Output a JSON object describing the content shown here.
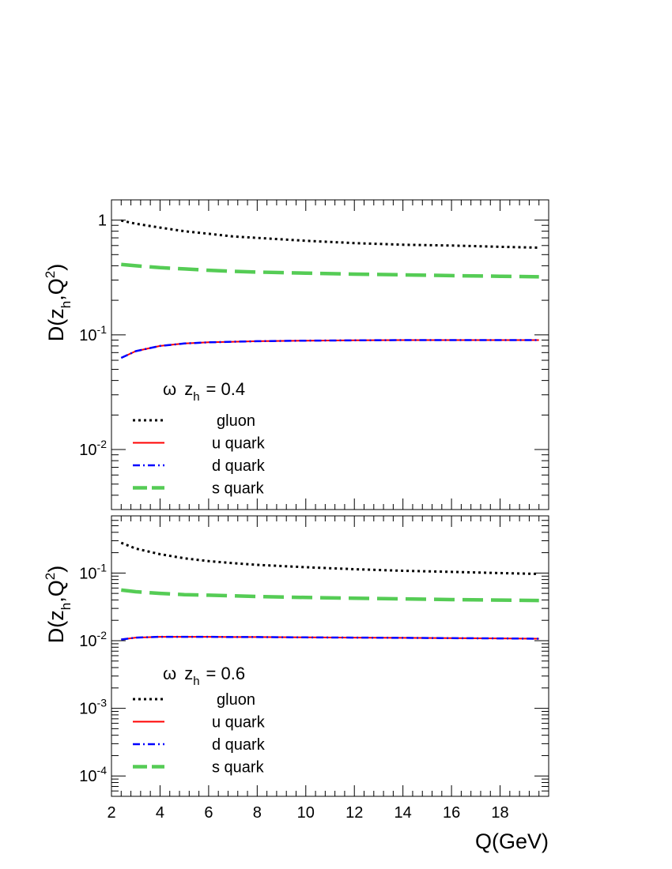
{
  "chart_data": [
    {
      "type": "line",
      "title": "",
      "ylabel_parts": [
        "D(z",
        "h",
        ",Q",
        "2",
        ")"
      ],
      "xlabel": "",
      "xlim": [
        2,
        20
      ],
      "ylim": [
        0.003,
        1.5
      ],
      "log_y": true,
      "y_ticks": [
        {
          "base": "1",
          "exp": "",
          "value": 1
        },
        {
          "base": "10",
          "exp": "-1",
          "value": 0.1
        },
        {
          "base": "10",
          "exp": "-2",
          "value": 0.01
        }
      ],
      "annotation": {
        "symbol": "ω",
        "var": "z",
        "sub": "h",
        "rest": "= 0.4"
      },
      "legend_position": "bottom-left",
      "x": [
        2.4,
        3,
        4,
        5,
        6,
        7,
        8,
        10,
        12,
        14,
        16,
        18,
        19.6
      ],
      "series": [
        {
          "name": "gluon",
          "color": "#000000",
          "style": "dotted",
          "values": [
            0.99,
            0.93,
            0.86,
            0.8,
            0.76,
            0.72,
            0.7,
            0.66,
            0.63,
            0.61,
            0.6,
            0.585,
            0.575
          ]
        },
        {
          "name": "u quark",
          "color": "#ff0000",
          "style": "solid",
          "values": [
            0.063,
            0.072,
            0.08,
            0.084,
            0.086,
            0.087,
            0.088,
            0.089,
            0.0895,
            0.09,
            0.09,
            0.09,
            0.09
          ]
        },
        {
          "name": "d quark",
          "color": "#0000ff",
          "style": "dashdot",
          "values": [
            0.063,
            0.072,
            0.08,
            0.084,
            0.086,
            0.087,
            0.088,
            0.089,
            0.0895,
            0.09,
            0.09,
            0.09,
            0.09
          ]
        },
        {
          "name": "s quark",
          "color": "#55cc55",
          "style": "longdash",
          "values": [
            0.41,
            0.4,
            0.385,
            0.375,
            0.365,
            0.358,
            0.352,
            0.345,
            0.338,
            0.333,
            0.328,
            0.324,
            0.32
          ]
        }
      ]
    },
    {
      "type": "line",
      "title": "",
      "ylabel_parts": [
        "D(z",
        "h",
        ",Q",
        "2",
        ")"
      ],
      "xlabel": "Q(GeV)",
      "xlim": [
        2,
        20
      ],
      "ylim": [
        5e-05,
        0.7
      ],
      "log_y": true,
      "y_ticks": [
        {
          "base": "10",
          "exp": "-1",
          "value": 0.1
        },
        {
          "base": "10",
          "exp": "-2",
          "value": 0.01
        },
        {
          "base": "10",
          "exp": "-3",
          "value": 0.001
        },
        {
          "base": "10",
          "exp": "-4",
          "value": 0.0001
        }
      ],
      "x_ticks": [
        "2",
        "4",
        "6",
        "8",
        "10",
        "12",
        "14",
        "16",
        "18"
      ],
      "annotation": {
        "symbol": "ω",
        "var": "z",
        "sub": "h",
        "rest": "= 0.6"
      },
      "legend_position": "bottom-left",
      "x": [
        2.4,
        3,
        4,
        5,
        6,
        7,
        8,
        10,
        12,
        14,
        16,
        18,
        19.6
      ],
      "series": [
        {
          "name": "gluon",
          "color": "#000000",
          "style": "dotted",
          "values": [
            0.28,
            0.23,
            0.19,
            0.165,
            0.15,
            0.14,
            0.132,
            0.122,
            0.114,
            0.108,
            0.104,
            0.1,
            0.097
          ]
        },
        {
          "name": "u quark",
          "color": "#ff0000",
          "style": "solid",
          "values": [
            0.0104,
            0.0111,
            0.0114,
            0.0114,
            0.0114,
            0.0113,
            0.0113,
            0.0112,
            0.0111,
            0.011,
            0.0109,
            0.0108,
            0.0107
          ]
        },
        {
          "name": "d quark",
          "color": "#0000ff",
          "style": "dashdot",
          "values": [
            0.0104,
            0.0111,
            0.0114,
            0.0114,
            0.0114,
            0.0113,
            0.0113,
            0.0112,
            0.0111,
            0.011,
            0.0109,
            0.0108,
            0.0107
          ]
        },
        {
          "name": "s quark",
          "color": "#55cc55",
          "style": "longdash",
          "values": [
            0.056,
            0.053,
            0.05,
            0.048,
            0.047,
            0.046,
            0.045,
            0.0435,
            0.0425,
            0.0415,
            0.0405,
            0.0398,
            0.0393
          ]
        }
      ]
    }
  ]
}
